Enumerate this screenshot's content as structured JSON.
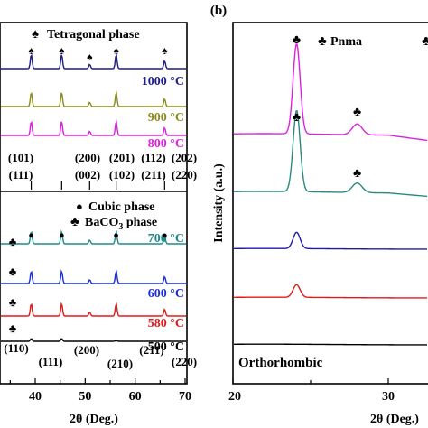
{
  "chart_data": [
    {
      "type": "line",
      "panel": "a",
      "xlabel": "2θ (Deg.)",
      "xlim": [
        0,
        70
      ],
      "x_visible_range": [
        33,
        70
      ],
      "x_ticks": [
        "40",
        "50",
        "60",
        "70"
      ],
      "x_tick_values": [
        40,
        50,
        60,
        70
      ],
      "upper": {
        "legend": [
          {
            "symbol": "♠",
            "label": "Tetragonal phase"
          }
        ],
        "series": [
          {
            "name": "1000 °C",
            "color": "#1c1c8a",
            "peaks": [
              39.2,
              45.3,
              50.9,
              56.2,
              65.9
            ]
          },
          {
            "name": "900 °C",
            "color": "#8c8c1a",
            "peaks": [
              39.2,
              45.3,
              50.9,
              56.2,
              65.9
            ]
          },
          {
            "name": "800 °C",
            "color": "#e020e0",
            "peaks": [
              39.2,
              45.3,
              50.9,
              56.2,
              65.9
            ]
          }
        ],
        "peak_marker_symbol": "♠",
        "peak_marker_positions": [
          39.2,
          45.3,
          50.9,
          56.2,
          65.9
        ],
        "miller_indices": [
          {
            "x": 36.5,
            "label": "(101)"
          },
          {
            "x": 38.8,
            "label": "(111)"
          },
          {
            "x": 44.5,
            "label": "(200)"
          },
          {
            "x": 45.5,
            "label": "(002)"
          },
          {
            "x": 49.5,
            "label": "(201)"
          },
          {
            "x": 50.7,
            "label": "(102)"
          },
          {
            "x": 55.3,
            "label": "(112)"
          },
          {
            "x": 56.5,
            "label": "(211)"
          },
          {
            "x": 65.3,
            "label": "(202)"
          },
          {
            "x": 65.8,
            "label": "(220)"
          }
        ]
      },
      "lower": {
        "legend": [
          {
            "symbol": "●",
            "label": "Cubic phase"
          },
          {
            "symbol": "♣",
            "label": "BaCO",
            "sub": "3",
            "tail": " phase"
          }
        ],
        "series": [
          {
            "name": "700 °C",
            "color": "#1f8a8a",
            "peaks": [
              39.2,
              45.3,
              50.9,
              56.2,
              65.9
            ]
          },
          {
            "name": "600 °C",
            "color": "#1a2ee0",
            "peaks": [
              39.2,
              45.3,
              50.9,
              56.2,
              65.9
            ]
          },
          {
            "name": "580 °C",
            "color": "#e01a1a",
            "peaks": [
              39.2,
              45.3,
              50.9,
              56.2,
              65.9
            ]
          },
          {
            "name": "500 °C",
            "color": "#000000",
            "peaks": [
              39.2,
              45.3,
              56.2
            ]
          }
        ],
        "cubic_marker_positions": [
          39.2,
          45.3,
          56.2,
          65.9
        ],
        "baco3_marker_positions": [
          34.2
        ],
        "miller_indices": [
          {
            "x": 34.8,
            "label": "(110)"
          },
          {
            "x": 39.6,
            "label": "(111)"
          },
          {
            "x": 45.2,
            "label": "(200)"
          },
          {
            "x": 50.7,
            "label": "(210)"
          },
          {
            "x": 56.2,
            "label": "(211)"
          },
          {
            "x": 66.0,
            "label": "(220)"
          }
        ]
      }
    },
    {
      "type": "line",
      "panel": "b",
      "panel_label": "(b)",
      "xlabel": "2θ (Deg.)",
      "ylabel": "Intensity (a.u.)",
      "xlim": [
        20,
        32.5
      ],
      "x_ticks": [
        "20",
        "30"
      ],
      "x_tick_values": [
        20,
        30
      ],
      "legend": [
        {
          "symbol": "♣",
          "label": "Pnma"
        }
      ],
      "annotation": "Orthorhombic",
      "series": [
        {
          "name": "magenta",
          "color": "#e020e0",
          "peaks": [
            24.1,
            28.0
          ],
          "heights": [
            1.0,
            0.12
          ]
        },
        {
          "name": "teal",
          "color": "#2a8a80",
          "peaks": [
            24.1,
            28.0
          ],
          "heights": [
            0.85,
            0.1
          ]
        },
        {
          "name": "blue",
          "color": "#1c1ca8",
          "peaks": [
            24.1
          ],
          "heights": [
            0.06
          ]
        },
        {
          "name": "red",
          "color": "#e01a1a",
          "peaks": [
            24.1
          ],
          "heights": [
            0.05
          ]
        },
        {
          "name": "black",
          "color": "#000000",
          "peaks": [],
          "heights": []
        }
      ],
      "peak_marker_symbol": "♣",
      "marker_positions": [
        {
          "series": "magenta",
          "x": [
            24.1,
            28.0
          ]
        },
        {
          "series": "teal",
          "x": [
            24.1,
            28.0
          ]
        }
      ]
    }
  ]
}
